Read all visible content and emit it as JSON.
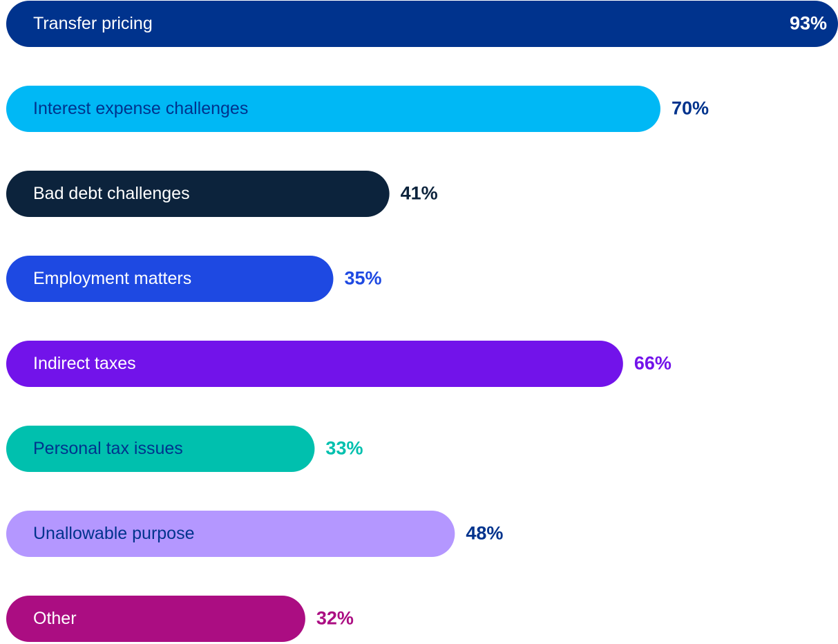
{
  "chart_data": {
    "type": "hbar",
    "categories": [
      "Transfer pricing",
      "Interest expense challenges",
      "Bad debt challenges",
      "Employment matters",
      "Indirect taxes",
      "Personal tax issues",
      "Unallowable purpose",
      "Other"
    ],
    "values": [
      93,
      70,
      41,
      35,
      66,
      33,
      48,
      32
    ],
    "value_labels": [
      "93%",
      "70%",
      "41%",
      "35%",
      "66%",
      "33%",
      "48%",
      "32%"
    ],
    "colors": [
      "#00338d",
      "#00b8f5",
      "#0c233c",
      "#1e49e2",
      "#7213ea",
      "#00c0ae",
      "#b497ff",
      "#ab0d82"
    ],
    "label_colors": [
      "#ffffff",
      "#00338d",
      "#ffffff",
      "#ffffff",
      "#ffffff",
      "#00338d",
      "#00338d",
      "#ffffff"
    ],
    "value_label_colors": [
      "#ffffff",
      "#00338d",
      "#0c233c",
      "#1e49e2",
      "#7213ea",
      "#00c0ae",
      "#00338d",
      "#ab0d82"
    ],
    "xlim": [
      0,
      89
    ]
  }
}
